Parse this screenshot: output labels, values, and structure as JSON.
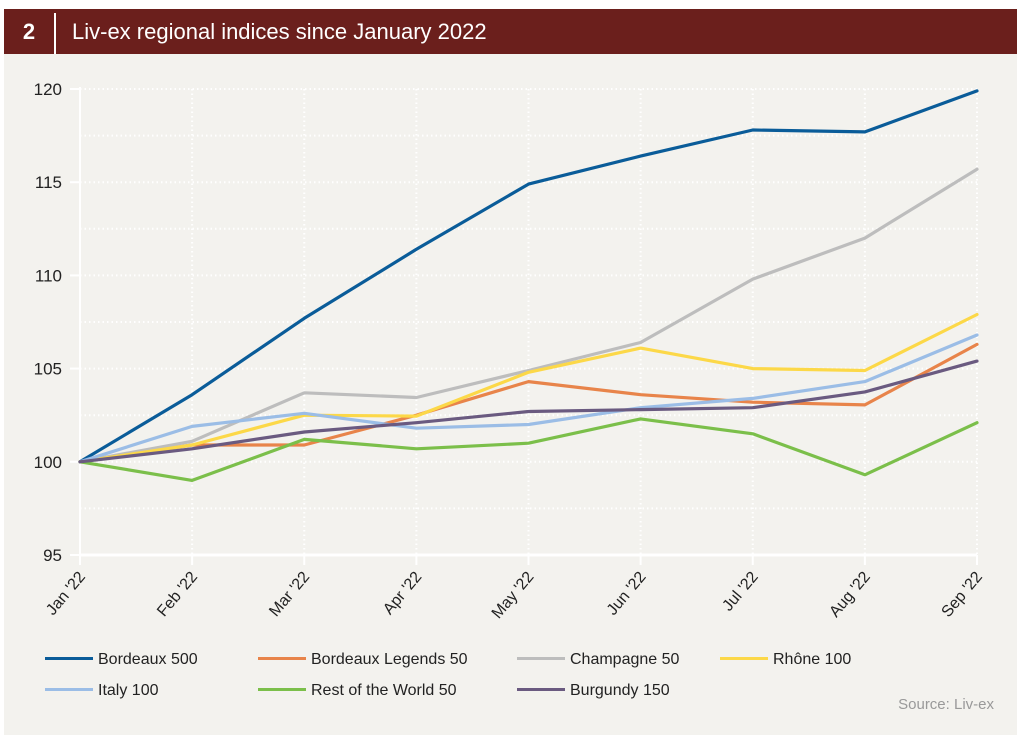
{
  "header": {
    "number": "2",
    "title": "Liv-ex regional indices since January 2022"
  },
  "source": "Source: Liv-ex",
  "colors": {
    "header_bg": "#6b1f1c",
    "panel_bg": "#f3f2ee",
    "grid": "#ffffff"
  },
  "chart_data": {
    "type": "line",
    "title": "Liv-ex regional indices since January 2022",
    "xlabel": "",
    "ylabel": "",
    "x": [
      "Jan '22",
      "Feb '22",
      "Mar '22",
      "Apr '22",
      "May '22",
      "Jun '22",
      "Jul '22",
      "Aug '22",
      "Sep '22"
    ],
    "ylim": [
      95,
      120
    ],
    "yticks": [
      95,
      100,
      105,
      110,
      115,
      120
    ],
    "grid": true,
    "legend_position": "bottom",
    "series": [
      {
        "name": "Bordeaux 500",
        "color": "#0a5c99",
        "values": [
          100,
          103.6,
          107.7,
          111.4,
          114.9,
          116.4,
          117.8,
          117.7,
          119.9
        ]
      },
      {
        "name": "Bordeaux Legends 50",
        "color": "#e8844a",
        "values": [
          100,
          100.9,
          100.9,
          102.5,
          104.3,
          103.6,
          103.2,
          103.05,
          106.3
        ]
      },
      {
        "name": "Champagne 50",
        "color": "#bdbdbd",
        "values": [
          100,
          101.1,
          103.7,
          103.45,
          104.9,
          106.4,
          109.8,
          112.0,
          115.7
        ]
      },
      {
        "name": "Rhône 100",
        "color": "#fcd848",
        "values": [
          100,
          100.9,
          102.5,
          102.45,
          104.8,
          106.1,
          105.0,
          104.9,
          107.9
        ]
      },
      {
        "name": "Italy 100",
        "color": "#9bbde6",
        "values": [
          100,
          101.9,
          102.6,
          101.8,
          102.0,
          102.9,
          103.4,
          104.3,
          106.8
        ]
      },
      {
        "name": "Rest of the World 50",
        "color": "#7bbf4a",
        "values": [
          100,
          99.0,
          101.2,
          100.7,
          101.0,
          102.3,
          101.5,
          99.3,
          102.1
        ]
      },
      {
        "name": "Burgundy 150",
        "color": "#6a5a80",
        "values": [
          100,
          100.7,
          101.6,
          102.1,
          102.7,
          102.8,
          102.9,
          103.75,
          105.4
        ]
      }
    ]
  }
}
